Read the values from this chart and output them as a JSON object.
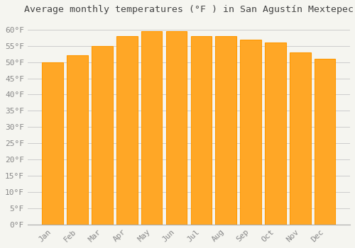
{
  "title": "Average monthly temperatures (°F ) in San Agustã­n Mextepec",
  "title_display": "Average monthly temperatures (°F ) in San Agustín Mextepec",
  "months": [
    "Jan",
    "Feb",
    "Mar",
    "Apr",
    "May",
    "Jun",
    "Jul",
    "Aug",
    "Sep",
    "Oct",
    "Nov",
    "Dec"
  ],
  "values": [
    50.0,
    52.0,
    55.0,
    58.0,
    59.5,
    59.5,
    58.0,
    58.0,
    57.0,
    56.0,
    53.0,
    51.0
  ],
  "bar_color": "#FFA726",
  "bar_edge_color": "#FF9800",
  "background_color": "#f5f5f0",
  "grid_color": "#cccccc",
  "ylim": [
    0,
    63
  ],
  "yticks": [
    0,
    5,
    10,
    15,
    20,
    25,
    30,
    35,
    40,
    45,
    50,
    55,
    60
  ],
  "ytick_labels": [
    "0°F",
    "5°F",
    "10°F",
    "15°F",
    "20°F",
    "25°F",
    "30°F",
    "35°F",
    "40°F",
    "45°F",
    "50°F",
    "55°F",
    "60°F"
  ],
  "title_fontsize": 9.5,
  "tick_fontsize": 8,
  "title_color": "#444444",
  "tick_color": "#888888",
  "bar_width": 0.85
}
